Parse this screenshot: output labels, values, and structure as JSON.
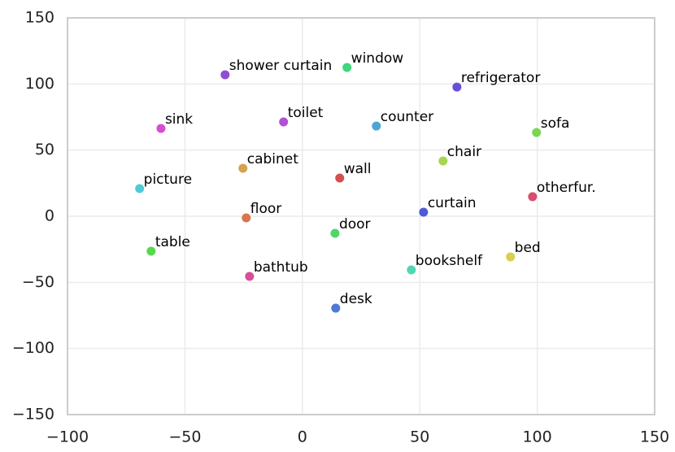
{
  "chart_data": {
    "type": "scatter",
    "labels": [
      "shower curtain",
      "window",
      "refrigerator",
      "sink",
      "toilet",
      "counter",
      "sofa",
      "chair",
      "cabinet",
      "wall",
      "picture",
      "otherfur.",
      "curtain",
      "floor",
      "door",
      "table",
      "bed",
      "bookshelf",
      "bathtub",
      "desk"
    ],
    "x": [
      -32.9,
      19,
      65.8,
      -60.2,
      -8,
      31.5,
      99.7,
      59.9,
      -25.3,
      15.9,
      -69.3,
      98,
      51.6,
      -23.9,
      13.9,
      -64.4,
      88.6,
      46.4,
      -22.5,
      14.2
    ],
    "y": [
      107,
      112.5,
      97.7,
      66.4,
      71.3,
      68.2,
      63.3,
      41.8,
      36.3,
      28.9,
      20.9,
      14.8,
      3.1,
      -1.2,
      -12.9,
      -26.4,
      -30.7,
      -40.6,
      -45.5,
      -69.5
    ],
    "colors": [
      "#8e4fd6",
      "#3ed67e",
      "#6a4fd6",
      "#d64fd0",
      "#b24fd6",
      "#4fa6d6",
      "#7ad64f",
      "#a6d64f",
      "#d6a24f",
      "#d64f4f",
      "#4fcbd6",
      "#d64f6e",
      "#4f5ad6",
      "#d6774f",
      "#4fd66a",
      "#5ad64f",
      "#d6cf4f",
      "#4fd6b4",
      "#d64f99",
      "#4f7ad6"
    ],
    "xlim": [
      -100,
      150
    ],
    "ylim": [
      -150,
      150
    ],
    "xticks": [
      {
        "value": -100,
        "label": "−100"
      },
      {
        "value": -50,
        "label": "−50"
      },
      0,
      50,
      100,
      150
    ],
    "yticks": [
      {
        "value": -150,
        "label": "−150"
      },
      {
        "value": -100,
        "label": "−100"
      },
      {
        "value": -50,
        "label": "−50"
      },
      0,
      50,
      100,
      150
    ],
    "grid": true
  }
}
